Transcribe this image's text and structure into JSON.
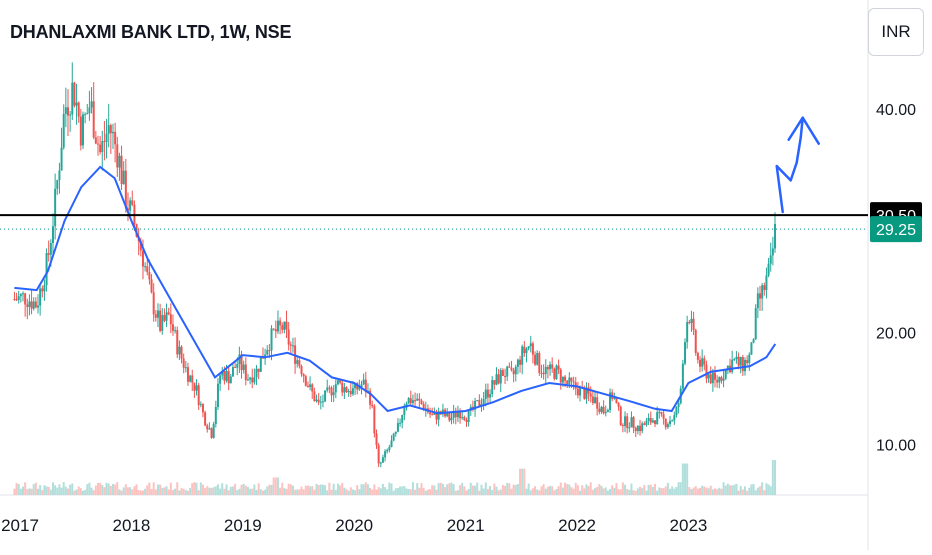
{
  "header": {
    "title": "DHANLAXMI BANK LTD, 1W, NSE",
    "currency": "INR"
  },
  "colors": {
    "up": "#26a69a",
    "down": "#ef5350",
    "ma": "#2962ff",
    "hline": "#000000",
    "price_label": "#089981",
    "volume_up": "#b2dfdb",
    "volume_down": "#fbc2c0"
  },
  "chart_data": {
    "type": "candlestick",
    "title": "DHANLAXMI BANK LTD, 1W, NSE",
    "ylim": [
      5.5,
      49.0
    ],
    "y_ticks": [
      "10.00",
      "20.00",
      "30.00",
      "40.00"
    ],
    "x_ticks": [
      "2017",
      "2018",
      "2019",
      "2020",
      "2021",
      "2022",
      "2023"
    ],
    "x_range": [
      2017.0,
      2024.5
    ],
    "price_close": [
      [
        2016.95,
        23.0
      ],
      [
        2017.05,
        23.2
      ],
      [
        2017.15,
        22.5
      ],
      [
        2017.25,
        26.5
      ],
      [
        2017.32,
        32.0
      ],
      [
        2017.4,
        40.0
      ],
      [
        2017.48,
        42.0
      ],
      [
        2017.55,
        38.0
      ],
      [
        2017.63,
        40.5
      ],
      [
        2017.72,
        36.0
      ],
      [
        2017.8,
        38.5
      ],
      [
        2017.88,
        36.0
      ],
      [
        2017.95,
        32.0
      ],
      [
        2018.02,
        30.0
      ],
      [
        2018.1,
        27.0
      ],
      [
        2018.18,
        23.0
      ],
      [
        2018.26,
        20.5
      ],
      [
        2018.34,
        21.5
      ],
      [
        2018.42,
        18.5
      ],
      [
        2018.5,
        16.5
      ],
      [
        2018.58,
        15.0
      ],
      [
        2018.65,
        12.5
      ],
      [
        2018.72,
        11.0
      ],
      [
        2018.8,
        16.5
      ],
      [
        2018.88,
        16.0
      ],
      [
        2018.96,
        17.5
      ],
      [
        2019.04,
        16.0
      ],
      [
        2019.12,
        16.5
      ],
      [
        2019.2,
        18.5
      ],
      [
        2019.28,
        20.0
      ],
      [
        2019.36,
        20.5
      ],
      [
        2019.44,
        18.5
      ],
      [
        2019.52,
        17.0
      ],
      [
        2019.6,
        15.0
      ],
      [
        2019.68,
        13.5
      ],
      [
        2019.76,
        14.5
      ],
      [
        2019.84,
        15.5
      ],
      [
        2019.92,
        15.0
      ],
      [
        2020.0,
        14.8
      ],
      [
        2020.08,
        15.5
      ],
      [
        2020.15,
        14.0
      ],
      [
        2020.22,
        8.0
      ],
      [
        2020.3,
        9.5
      ],
      [
        2020.38,
        11.0
      ],
      [
        2020.46,
        14.0
      ],
      [
        2020.54,
        14.0
      ],
      [
        2020.62,
        13.5
      ],
      [
        2020.7,
        12.5
      ],
      [
        2020.78,
        12.8
      ],
      [
        2020.86,
        12.3
      ],
      [
        2020.94,
        13.0
      ],
      [
        2021.02,
        12.5
      ],
      [
        2021.1,
        13.5
      ],
      [
        2021.18,
        14.5
      ],
      [
        2021.26,
        15.5
      ],
      [
        2021.34,
        16.5
      ],
      [
        2021.42,
        16.0
      ],
      [
        2021.5,
        18.0
      ],
      [
        2021.58,
        19.0
      ],
      [
        2021.66,
        17.0
      ],
      [
        2021.74,
        16.5
      ],
      [
        2021.82,
        16.5
      ],
      [
        2021.9,
        15.5
      ],
      [
        2022.0,
        15.0
      ],
      [
        2022.08,
        14.5
      ],
      [
        2022.16,
        14.0
      ],
      [
        2022.24,
        13.0
      ],
      [
        2022.32,
        14.5
      ],
      [
        2022.4,
        12.0
      ],
      [
        2022.48,
        12.0
      ],
      [
        2022.56,
        11.5
      ],
      [
        2022.64,
        12.0
      ],
      [
        2022.72,
        12.5
      ],
      [
        2022.8,
        12.0
      ],
      [
        2022.88,
        12.5
      ],
      [
        2022.93,
        14.5
      ],
      [
        2022.97,
        20.0
      ],
      [
        2023.0,
        22.0
      ],
      [
        2023.08,
        17.5
      ],
      [
        2023.16,
        16.5
      ],
      [
        2023.24,
        15.5
      ],
      [
        2023.32,
        16.5
      ],
      [
        2023.4,
        17.5
      ],
      [
        2023.48,
        17.0
      ],
      [
        2023.56,
        18.0
      ],
      [
        2023.62,
        22.5
      ],
      [
        2023.68,
        24.0
      ],
      [
        2023.74,
        26.0
      ],
      [
        2023.78,
        29.25
      ]
    ],
    "moving_average": [
      [
        2016.95,
        24.0
      ],
      [
        2017.15,
        23.8
      ],
      [
        2017.25,
        25.5
      ],
      [
        2017.4,
        30.0
      ],
      [
        2017.55,
        33.0
      ],
      [
        2017.72,
        34.8
      ],
      [
        2017.85,
        33.8
      ],
      [
        2018.0,
        30.0
      ],
      [
        2018.15,
        26.5
      ],
      [
        2018.35,
        23.0
      ],
      [
        2018.55,
        19.5
      ],
      [
        2018.75,
        16.0
      ],
      [
        2019.0,
        18.0
      ],
      [
        2019.2,
        17.8
      ],
      [
        2019.4,
        18.2
      ],
      [
        2019.6,
        17.5
      ],
      [
        2019.8,
        16.0
      ],
      [
        2020.0,
        15.5
      ],
      [
        2020.15,
        14.5
      ],
      [
        2020.3,
        13.0
      ],
      [
        2020.5,
        13.5
      ],
      [
        2020.75,
        12.8
      ],
      [
        2021.0,
        13.0
      ],
      [
        2021.25,
        13.8
      ],
      [
        2021.5,
        14.8
      ],
      [
        2021.75,
        15.5
      ],
      [
        2022.0,
        15.2
      ],
      [
        2022.25,
        14.5
      ],
      [
        2022.5,
        13.8
      ],
      [
        2022.7,
        13.2
      ],
      [
        2022.85,
        13.0
      ],
      [
        2023.0,
        15.5
      ],
      [
        2023.2,
        16.5
      ],
      [
        2023.4,
        16.8
      ],
      [
        2023.55,
        17.0
      ],
      [
        2023.7,
        17.8
      ],
      [
        2023.78,
        19.0
      ]
    ],
    "horizontal_line": {
      "value": 30.5,
      "label": "30.50"
    },
    "last_price": {
      "value": 29.25,
      "label": "29.25"
    },
    "volume_spikes": [
      [
        2022.97,
        0.9
      ],
      [
        2023.78,
        1.0
      ],
      [
        2021.5,
        0.75
      ],
      [
        2019.3,
        0.5
      ]
    ],
    "annotation": "hand-drawn arrow pointing up"
  }
}
